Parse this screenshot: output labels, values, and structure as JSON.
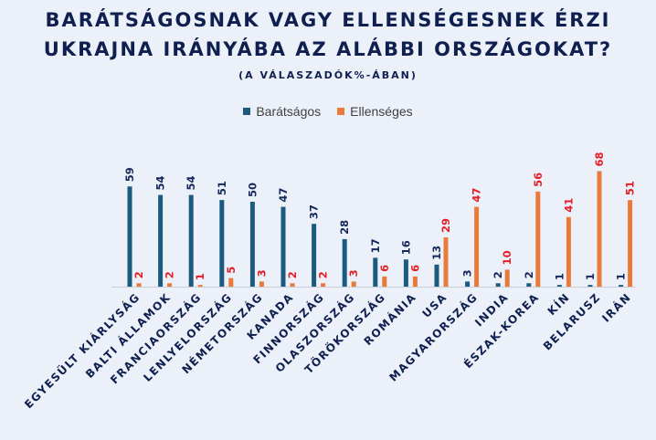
{
  "title_line1": "BARÁTSÁGOSNAK VAGY ELLENSÉGESNEK ÉRZI",
  "title_line2": "UKRAJNA IRÁNYÁBA AZ ALÁBBI ORSZÁGOKAT?",
  "subtitle": "(A VÁLASZADÓK%-ÁBAN)",
  "colors": {
    "friendly": "#1d5a80",
    "hostile": "#e87a3c",
    "friendly_label": "#14285c",
    "hostile_label": "#e41e26"
  },
  "chart_data": {
    "type": "bar",
    "categories": [
      "EGYESÜLT KIÁRLYSÁG",
      "BALTI ÁLLAMOK",
      "FRANCIAORSZÁG",
      "LENLYELORSZÁG",
      "NÉMETORSZÁG",
      "KANADA",
      "FINNORSZÁG",
      "OLASZORSZÁG",
      "TÖRÖKORSZÁG",
      "ROMÁNIA",
      "USA",
      "MAGYARORSZÁG",
      "INDIA",
      "ÉSZAK-KOREA",
      "KÍN",
      "BELARUSZ",
      "IRÁN"
    ],
    "series": [
      {
        "name": "Barátságos",
        "values": [
          59,
          54,
          54,
          51,
          50,
          47,
          37,
          28,
          17,
          16,
          13,
          3,
          2,
          2,
          1,
          1,
          1
        ]
      },
      {
        "name": "Ellenséges",
        "values": [
          2,
          2,
          1,
          5,
          3,
          2,
          2,
          3,
          6,
          6,
          29,
          47,
          10,
          56,
          41,
          68,
          51
        ]
      }
    ],
    "ylim": [
      0,
      70
    ],
    "legend_position": "top"
  }
}
